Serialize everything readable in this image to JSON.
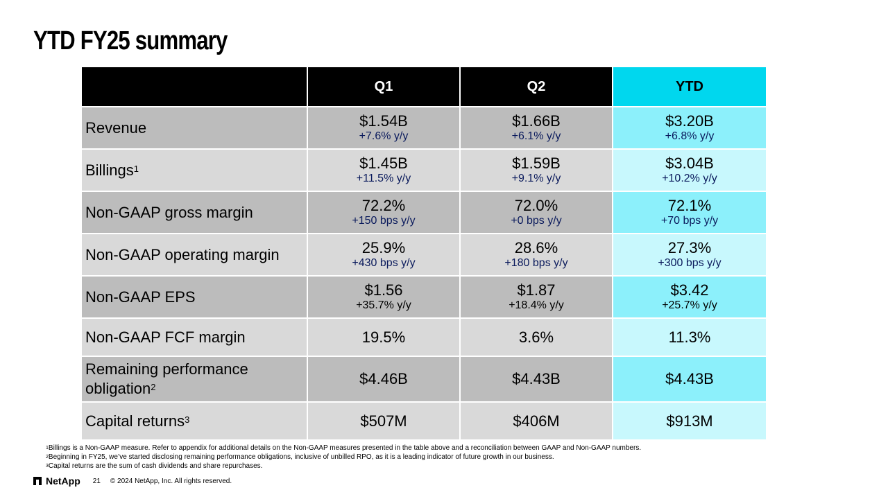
{
  "title": "YTD FY25 summary",
  "table": {
    "columns": [
      "Q1",
      "Q2",
      "YTD"
    ],
    "rows": [
      {
        "label": "Revenue",
        "sup": "",
        "q1": "$1.54B",
        "q1_sub": "+7.6% y/y",
        "q2": "$1.66B",
        "q2_sub": "+6.1% y/y",
        "ytd": "$3.20B",
        "ytd_sub": "+6.8% y/y"
      },
      {
        "label": "Billings",
        "sup": "1",
        "q1": "$1.45B",
        "q1_sub": "+11.5% y/y",
        "q2": "$1.59B",
        "q2_sub": "+9.1% y/y",
        "ytd": "$3.04B",
        "ytd_sub": "+10.2% y/y"
      },
      {
        "label": "Non-GAAP gross margin",
        "sup": "",
        "q1": "72.2%",
        "q1_sub": "+150 bps y/y",
        "q2": "72.0%",
        "q2_sub": "+0 bps y/y",
        "ytd": "72.1%",
        "ytd_sub": "+70 bps y/y"
      },
      {
        "label": "Non-GAAP operating margin",
        "sup": "",
        "q1": "25.9%",
        "q1_sub": "+430 bps y/y",
        "q2": "28.6%",
        "q2_sub": "+180 bps y/y",
        "ytd": "27.3%",
        "ytd_sub": "+300 bps y/y"
      },
      {
        "label": "Non-GAAP EPS",
        "sup": "",
        "q1": "$1.56",
        "q1_sub": "+35.7% y/y",
        "q2": "$1.87",
        "q2_sub": "+18.4% y/y",
        "ytd": "$3.42",
        "ytd_sub": "+25.7% y/y"
      },
      {
        "label": "Non-GAAP FCF margin",
        "sup": "",
        "q1": "19.5%",
        "q2": "3.6%",
        "ytd": "11.3%"
      },
      {
        "label_line1": "Remaining performance",
        "label_line2": "obligation",
        "sup": "2",
        "q1": "$4.46B",
        "q2": "$4.43B",
        "ytd": "$4.43B"
      },
      {
        "label": "Capital returns",
        "sup": "3",
        "q1": "$507M",
        "q2": "$406M",
        "ytd": "$913M"
      }
    ]
  },
  "footnotes": [
    {
      "num": "1",
      "text": "Billings is a Non-GAAP measure. Refer to appendix for additional details on the Non-GAAP measures presented in the table above and a reconciliation between GAAP and Non-GAAP numbers."
    },
    {
      "num": "2",
      "text": "Beginning in FY25, we’ve started disclosing remaining performance obligations, inclusive of unbilled RPO, as it is a leading indicator of future growth in our business."
    },
    {
      "num": "3",
      "text": "Capital returns are the sum of cash dividends and share repurchases."
    }
  ],
  "footer": {
    "logo_text": "NetApp",
    "page_number": "21",
    "copyright": "© 2024 NetApp, Inc. All rights reserved."
  },
  "colors": {
    "header_black": "#000000",
    "header_ytd": "#00d7ee",
    "row_dark": "#bcbcbc",
    "row_light": "#d9d9d9",
    "ytd_dark": "#8cf0fb",
    "ytd_light": "#c8f8fd",
    "growth_text": "#0a1a5c"
  }
}
